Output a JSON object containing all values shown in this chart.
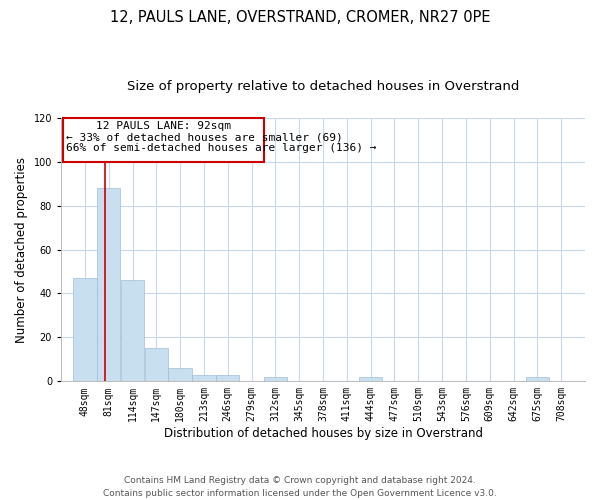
{
  "title": "12, PAULS LANE, OVERSTRAND, CROMER, NR27 0PE",
  "subtitle": "Size of property relative to detached houses in Overstrand",
  "xlabel": "Distribution of detached houses by size in Overstrand",
  "ylabel": "Number of detached properties",
  "bin_labels": [
    "48sqm",
    "81sqm",
    "114sqm",
    "147sqm",
    "180sqm",
    "213sqm",
    "246sqm",
    "279sqm",
    "312sqm",
    "345sqm",
    "378sqm",
    "411sqm",
    "444sqm",
    "477sqm",
    "510sqm",
    "543sqm",
    "576sqm",
    "609sqm",
    "642sqm",
    "675sqm",
    "708sqm"
  ],
  "bar_heights": [
    47,
    88,
    46,
    15,
    6,
    3,
    3,
    0,
    2,
    0,
    0,
    0,
    2,
    0,
    0,
    0,
    0,
    0,
    0,
    2,
    0
  ],
  "bar_color": "#c8dff0",
  "bar_edge_color": "#a0bcd8",
  "property_line_x": 92,
  "bin_edges_values": [
    48,
    81,
    114,
    147,
    180,
    213,
    246,
    279,
    312,
    345,
    378,
    411,
    444,
    477,
    510,
    543,
    576,
    609,
    642,
    675,
    708,
    741
  ],
  "annotation_line1": "12 PAULS LANE: 92sqm",
  "annotation_line2": "← 33% of detached houses are smaller (69)",
  "annotation_line3": "66% of semi-detached houses are larger (136) →",
  "red_line_color": "#cc0000",
  "ylim": [
    0,
    120
  ],
  "yticks": [
    0,
    20,
    40,
    60,
    80,
    100,
    120
  ],
  "footnote": "Contains HM Land Registry data © Crown copyright and database right 2024.\nContains public sector information licensed under the Open Government Licence v3.0.",
  "bg_color": "#ffffff",
  "grid_color": "#c8d8e8",
  "title_fontsize": 10.5,
  "subtitle_fontsize": 9.5,
  "axis_label_fontsize": 8.5,
  "tick_fontsize": 7,
  "annotation_fontsize": 8,
  "footnote_fontsize": 6.5
}
